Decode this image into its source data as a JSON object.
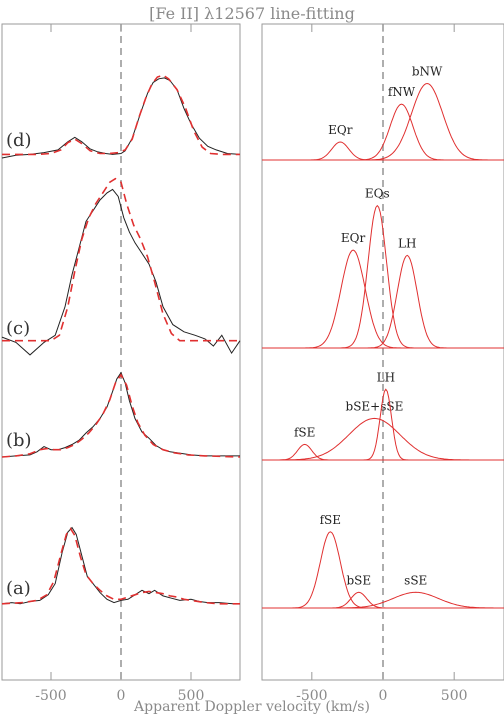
{
  "chart_data": {
    "type": "line",
    "title": "[Fe II] λ12567 line-fitting",
    "xlabel": "Apparent Doppler velocity (km/s)",
    "xlim": [
      -850,
      850
    ],
    "xticks": [
      -500,
      0,
      500
    ],
    "xtick_labels": [
      "-500",
      "0",
      "500"
    ],
    "zero_line": 0,
    "colors": {
      "observed": "#222222",
      "fit": "#e03030",
      "component": "#e03030",
      "axis": "#9a9a9a"
    },
    "panels": [
      {
        "label": "(d)",
        "observed": [
          [
            -850,
            0.0
          ],
          [
            -750,
            0.03
          ],
          [
            -650,
            0.04
          ],
          [
            -550,
            0.06
          ],
          [
            -450,
            0.09
          ],
          [
            -380,
            0.18
          ],
          [
            -330,
            0.23
          ],
          [
            -280,
            0.18
          ],
          [
            -220,
            0.1
          ],
          [
            -170,
            0.07
          ],
          [
            -110,
            0.05
          ],
          [
            -60,
            0.04
          ],
          [
            0,
            0.05
          ],
          [
            30,
            0.08
          ],
          [
            80,
            0.22
          ],
          [
            140,
            0.5
          ],
          [
            190,
            0.72
          ],
          [
            230,
            0.84
          ],
          [
            270,
            0.88
          ],
          [
            310,
            0.89
          ],
          [
            350,
            0.86
          ],
          [
            400,
            0.76
          ],
          [
            450,
            0.55
          ],
          [
            500,
            0.38
          ],
          [
            560,
            0.22
          ],
          [
            620,
            0.13
          ],
          [
            680,
            0.09
          ],
          [
            760,
            0.05
          ],
          [
            850,
            0.04
          ]
        ],
        "fit": [
          [
            -850,
            0.04
          ],
          [
            -700,
            0.04
          ],
          [
            -600,
            0.04
          ],
          [
            -500,
            0.05
          ],
          [
            -430,
            0.09
          ],
          [
            -380,
            0.17
          ],
          [
            -330,
            0.21
          ],
          [
            -280,
            0.16
          ],
          [
            -220,
            0.08
          ],
          [
            -150,
            0.05
          ],
          [
            -80,
            0.05
          ],
          [
            -20,
            0.06
          ],
          [
            30,
            0.09
          ],
          [
            80,
            0.21
          ],
          [
            130,
            0.46
          ],
          [
            180,
            0.68
          ],
          [
            220,
            0.82
          ],
          [
            260,
            0.9
          ],
          [
            300,
            0.92
          ],
          [
            340,
            0.88
          ],
          [
            400,
            0.76
          ],
          [
            460,
            0.56
          ],
          [
            520,
            0.3
          ],
          [
            580,
            0.12
          ],
          [
            640,
            0.05
          ],
          [
            720,
            0.04
          ],
          [
            850,
            0.04
          ]
        ],
        "components": [
          {
            "name": "EQr",
            "center": -300,
            "sigma": 60,
            "amp": 0.2
          },
          {
            "name": "fNW",
            "center": 130,
            "sigma": 80,
            "amp": 0.62
          },
          {
            "name": "bNW",
            "center": 310,
            "sigma": 110,
            "amp": 0.85
          }
        ]
      },
      {
        "label": "(c)",
        "observed": [
          [
            -850,
            0.05
          ],
          [
            -750,
            0.02
          ],
          [
            -650,
            -0.05
          ],
          [
            -550,
            0.02
          ],
          [
            -470,
            0.06
          ],
          [
            -400,
            0.22
          ],
          [
            -350,
            0.4
          ],
          [
            -300,
            0.55
          ],
          [
            -250,
            0.7
          ],
          [
            -200,
            0.76
          ],
          [
            -150,
            0.82
          ],
          [
            -100,
            0.86
          ],
          [
            -60,
            0.88
          ],
          [
            -20,
            0.84
          ],
          [
            20,
            0.72
          ],
          [
            60,
            0.64
          ],
          [
            100,
            0.58
          ],
          [
            150,
            0.52
          ],
          [
            200,
            0.46
          ],
          [
            250,
            0.36
          ],
          [
            300,
            0.22
          ],
          [
            370,
            0.12
          ],
          [
            450,
            0.08
          ],
          [
            530,
            0.06
          ],
          [
            600,
            0.04
          ],
          [
            660,
            0.0
          ],
          [
            720,
            0.06
          ],
          [
            790,
            -0.04
          ],
          [
            850,
            0.03
          ]
        ],
        "fit": [
          [
            -850,
            0.03
          ],
          [
            -700,
            0.03
          ],
          [
            -600,
            0.03
          ],
          [
            -500,
            0.03
          ],
          [
            -440,
            0.06
          ],
          [
            -380,
            0.22
          ],
          [
            -330,
            0.42
          ],
          [
            -280,
            0.6
          ],
          [
            -230,
            0.72
          ],
          [
            -180,
            0.8
          ],
          [
            -130,
            0.86
          ],
          [
            -80,
            0.92
          ],
          [
            -40,
            0.94
          ],
          [
            0,
            0.92
          ],
          [
            40,
            0.8
          ],
          [
            90,
            0.68
          ],
          [
            140,
            0.6
          ],
          [
            190,
            0.5
          ],
          [
            240,
            0.36
          ],
          [
            300,
            0.18
          ],
          [
            360,
            0.07
          ],
          [
            420,
            0.03
          ],
          [
            500,
            0.03
          ],
          [
            650,
            0.03
          ],
          [
            850,
            0.03
          ]
        ],
        "components": [
          {
            "name": "EQr",
            "center": -210,
            "sigma": 85,
            "amp": 0.55
          },
          {
            "name": "EQs",
            "center": -40,
            "sigma": 65,
            "amp": 0.8
          },
          {
            "name": "LH",
            "center": 170,
            "sigma": 70,
            "amp": 0.52
          }
        ]
      },
      {
        "label": "(b)",
        "observed": [
          [
            -850,
            0.01
          ],
          [
            -750,
            0.02
          ],
          [
            -650,
            0.03
          ],
          [
            -600,
            0.06
          ],
          [
            -550,
            0.11
          ],
          [
            -500,
            0.08
          ],
          [
            -450,
            0.08
          ],
          [
            -400,
            0.1
          ],
          [
            -350,
            0.13
          ],
          [
            -300,
            0.17
          ],
          [
            -250,
            0.24
          ],
          [
            -200,
            0.3
          ],
          [
            -150,
            0.38
          ],
          [
            -100,
            0.49
          ],
          [
            -60,
            0.64
          ],
          [
            -30,
            0.76
          ],
          [
            0,
            0.82
          ],
          [
            30,
            0.72
          ],
          [
            60,
            0.55
          ],
          [
            100,
            0.38
          ],
          [
            150,
            0.25
          ],
          [
            200,
            0.19
          ],
          [
            250,
            0.12
          ],
          [
            300,
            0.08
          ],
          [
            350,
            0.06
          ],
          [
            400,
            0.05
          ],
          [
            500,
            0.03
          ],
          [
            600,
            0.02
          ],
          [
            700,
            0.02
          ],
          [
            850,
            0.02
          ]
        ],
        "fit": [
          [
            -850,
            0.01
          ],
          [
            -750,
            0.02
          ],
          [
            -650,
            0.04
          ],
          [
            -580,
            0.08
          ],
          [
            -530,
            0.09
          ],
          [
            -480,
            0.08
          ],
          [
            -430,
            0.08
          ],
          [
            -380,
            0.1
          ],
          [
            -330,
            0.13
          ],
          [
            -280,
            0.18
          ],
          [
            -230,
            0.24
          ],
          [
            -180,
            0.32
          ],
          [
            -130,
            0.42
          ],
          [
            -80,
            0.56
          ],
          [
            -40,
            0.72
          ],
          [
            0,
            0.8
          ],
          [
            40,
            0.7
          ],
          [
            80,
            0.5
          ],
          [
            120,
            0.34
          ],
          [
            170,
            0.22
          ],
          [
            230,
            0.13
          ],
          [
            300,
            0.08
          ],
          [
            380,
            0.05
          ],
          [
            480,
            0.03
          ],
          [
            600,
            0.02
          ],
          [
            850,
            0.01
          ]
        ],
        "components": [
          {
            "name": "fSE",
            "center": -550,
            "sigma": 50,
            "amp": 0.15
          },
          {
            "name": "bSE+sSE",
            "center": -60,
            "sigma": 180,
            "amp": 0.4
          },
          {
            "name": "LH",
            "center": 20,
            "sigma": 40,
            "amp": 0.68
          }
        ]
      },
      {
        "label": "(a)",
        "observed": [
          [
            -850,
            0.02
          ],
          [
            -780,
            0.03
          ],
          [
            -720,
            0.02
          ],
          [
            -650,
            0.04
          ],
          [
            -580,
            0.05
          ],
          [
            -520,
            0.1
          ],
          [
            -470,
            0.2
          ],
          [
            -420,
            0.48
          ],
          [
            -380,
            0.66
          ],
          [
            -350,
            0.7
          ],
          [
            -320,
            0.64
          ],
          [
            -280,
            0.45
          ],
          [
            -240,
            0.26
          ],
          [
            -200,
            0.2
          ],
          [
            -150,
            0.12
          ],
          [
            -100,
            0.06
          ],
          [
            -50,
            0.03
          ],
          [
            0,
            0.05
          ],
          [
            50,
            0.06
          ],
          [
            100,
            0.1
          ],
          [
            150,
            0.14
          ],
          [
            200,
            0.11
          ],
          [
            240,
            0.14
          ],
          [
            300,
            0.09
          ],
          [
            360,
            0.07
          ],
          [
            420,
            0.05
          ],
          [
            500,
            0.06
          ],
          [
            560,
            0.04
          ],
          [
            620,
            0.03
          ],
          [
            700,
            0.03
          ],
          [
            800,
            0.02
          ],
          [
            850,
            0.02
          ]
        ],
        "fit": [
          [
            -850,
            0.02
          ],
          [
            -700,
            0.03
          ],
          [
            -600,
            0.05
          ],
          [
            -530,
            0.1
          ],
          [
            -480,
            0.22
          ],
          [
            -430,
            0.46
          ],
          [
            -390,
            0.64
          ],
          [
            -360,
            0.69
          ],
          [
            -330,
            0.63
          ],
          [
            -290,
            0.44
          ],
          [
            -250,
            0.28
          ],
          [
            -200,
            0.2
          ],
          [
            -150,
            0.14
          ],
          [
            -100,
            0.09
          ],
          [
            -50,
            0.06
          ],
          [
            0,
            0.06
          ],
          [
            50,
            0.08
          ],
          [
            100,
            0.1
          ],
          [
            150,
            0.12
          ],
          [
            200,
            0.13
          ],
          [
            250,
            0.12
          ],
          [
            300,
            0.11
          ],
          [
            350,
            0.09
          ],
          [
            400,
            0.08
          ],
          [
            450,
            0.06
          ],
          [
            500,
            0.05
          ],
          [
            600,
            0.03
          ],
          [
            700,
            0.02
          ],
          [
            850,
            0.02
          ]
        ],
        "components": [
          {
            "name": "fSE",
            "center": -370,
            "sigma": 70,
            "amp": 0.68
          },
          {
            "name": "bSE",
            "center": -170,
            "sigma": 55,
            "amp": 0.14
          },
          {
            "name": "sSE",
            "center": 230,
            "sigma": 160,
            "amp": 0.14
          }
        ]
      }
    ]
  }
}
